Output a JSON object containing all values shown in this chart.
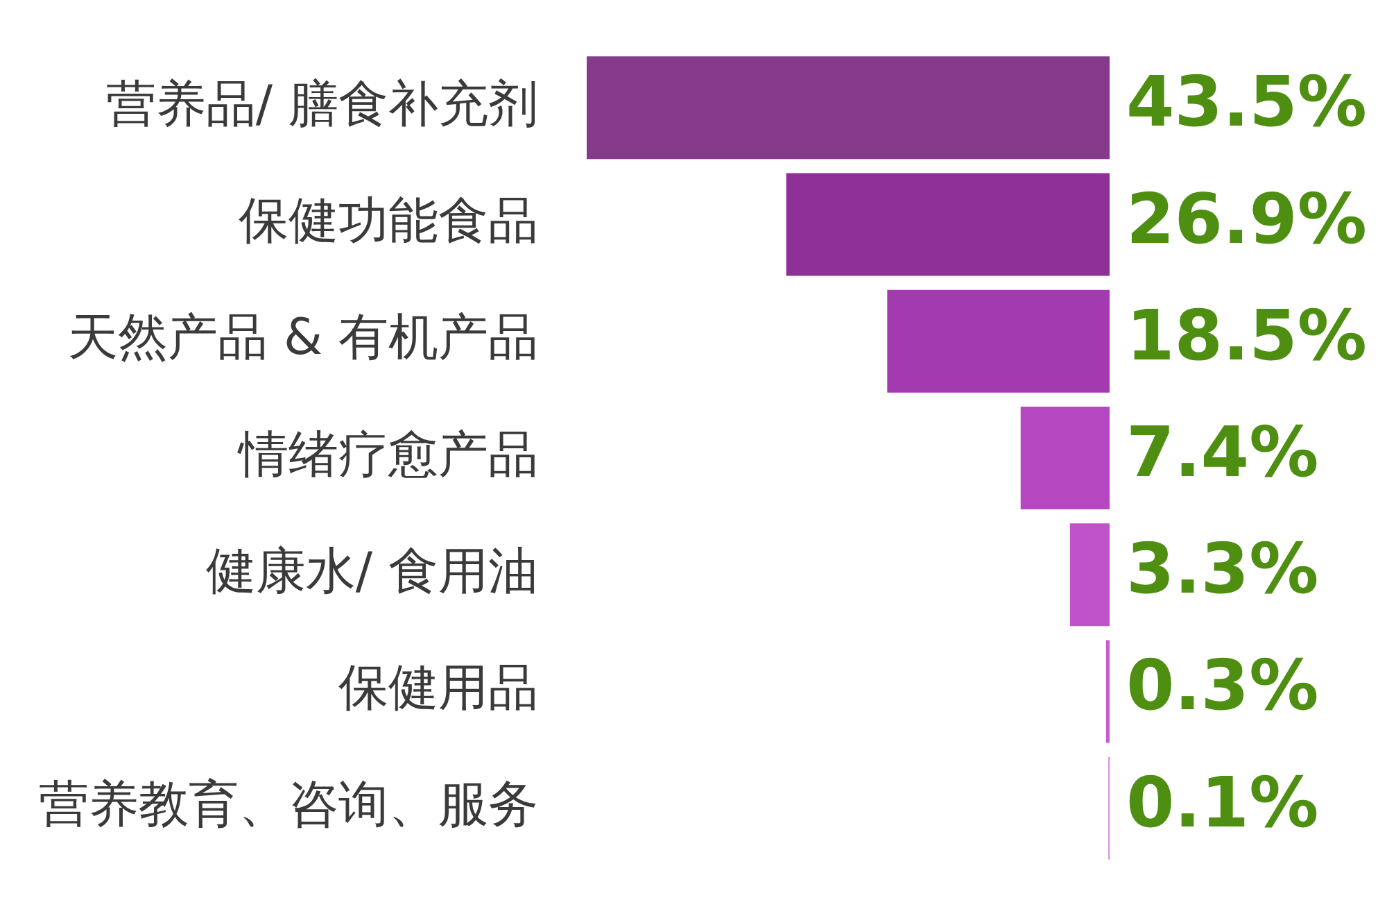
{
  "chart_data": {
    "type": "bar",
    "orientation": "horizontal",
    "categories": [
      "营养品/ 膳食补充剂",
      "保健功能食品",
      "天然产品 & 有机产品",
      "情绪疗愈产品",
      "健康水/ 食用油",
      "保健用品",
      "营养教育、咨询、服务"
    ],
    "values": [
      43.5,
      26.9,
      18.5,
      7.4,
      3.3,
      0.3,
      0.1
    ],
    "value_labels": [
      "43.5%",
      "26.9%",
      "18.5%",
      "7.4%",
      "3.3%",
      "0.3%",
      "0.1%"
    ],
    "colors": [
      "#853a8c",
      "#8f2f98",
      "#a33aaf",
      "#b648c2",
      "#c052ca",
      "#c95bd1",
      "#d47ad9"
    ],
    "legend": false,
    "grid": false
  }
}
